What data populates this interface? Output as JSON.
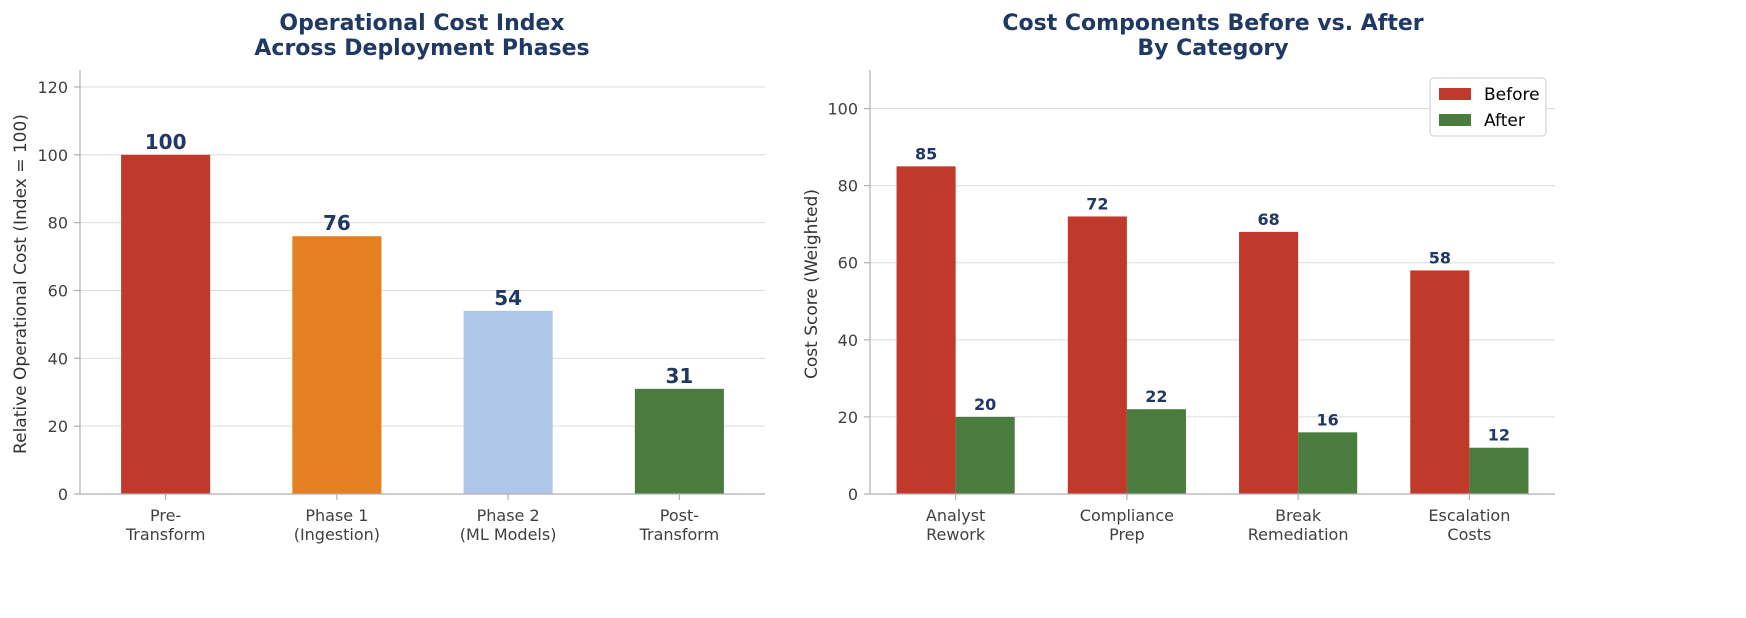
{
  "chart_data": [
    {
      "type": "bar",
      "title": [
        "Operational Cost Index",
        "Across Deployment Phases"
      ],
      "xlabel": "",
      "ylabel": "Relative Operational Cost (Index = 100)",
      "categories": [
        [
          "Pre-",
          "Transform"
        ],
        [
          "Phase 1",
          "(Ingestion)"
        ],
        [
          "Phase 2",
          "(ML Models)"
        ],
        [
          "Post-",
          "Transform"
        ]
      ],
      "values": [
        100,
        76,
        54,
        31
      ],
      "colors": [
        "#c0392b",
        "#e67e22",
        "#aec6e8",
        "#4a7c3f"
      ],
      "ylim": [
        0,
        125
      ],
      "yticks": [
        0,
        20,
        40,
        60,
        80,
        100,
        120
      ],
      "grid": true
    },
    {
      "type": "bar",
      "title": [
        "Cost Components Before vs. After",
        "By Category"
      ],
      "xlabel": "",
      "ylabel": "Cost Score (Weighted)",
      "categories": [
        [
          "Analyst",
          "Rework"
        ],
        [
          "Compliance",
          "Prep"
        ],
        [
          "Break",
          "Remediation"
        ],
        [
          "Escalation",
          "Costs"
        ]
      ],
      "series": [
        {
          "name": "Before",
          "values": [
            85,
            72,
            68,
            58
          ],
          "color": "#c0392b"
        },
        {
          "name": "After",
          "values": [
            20,
            22,
            16,
            12
          ],
          "color": "#4a7c3f"
        }
      ],
      "ylim": [
        0,
        110
      ],
      "yticks": [
        0,
        20,
        40,
        60,
        80,
        100
      ],
      "grid": true,
      "legend": "top-right"
    }
  ]
}
